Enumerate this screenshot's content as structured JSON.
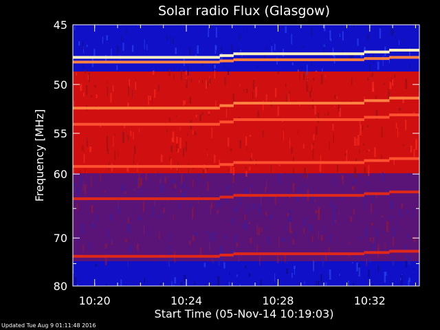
{
  "chart_data": {
    "type": "heatmap",
    "title": "Solar radio Flux (Glasgow)",
    "xlabel": "Start Time (05-Nov-14 10:19:03)",
    "ylabel": "Frequency [MHz]",
    "x_range": [
      "10:19:03",
      "10:34:10"
    ],
    "x_ticks": [
      "10:20",
      "10:24",
      "10:28",
      "10:32"
    ],
    "y_range": [
      45,
      80
    ],
    "y_ticks": [
      45,
      50,
      55,
      60,
      70,
      80
    ],
    "y_minor_ticks": [
      65,
      75
    ],
    "y_scale": "reciprocal",
    "grid": false,
    "colormap": [
      "#1010c8",
      "#d01010",
      "#ff8040",
      "#fff0c0"
    ],
    "step_times_min": [
      6.4,
      7.0,
      12.7,
      13.8
    ],
    "emission_lanes": [
      {
        "mhz_start": 47.6,
        "mhz_end": 47.0,
        "intensity": "very-high"
      },
      {
        "mhz_start": 48.0,
        "mhz_end": 47.6,
        "intensity": "high"
      },
      {
        "mhz_start": 52.3,
        "mhz_end": 51.3,
        "intensity": "high"
      },
      {
        "mhz_start": 54.0,
        "mhz_end": 53.0,
        "intensity": "medium-high"
      },
      {
        "mhz_start": 59.0,
        "mhz_end": 58.0,
        "intensity": "medium-high"
      },
      {
        "mhz_start": 63.5,
        "mhz_end": 62.5,
        "intensity": "medium"
      },
      {
        "mhz_start": 73.5,
        "mhz_end": 72.5,
        "intensity": "medium"
      }
    ]
  },
  "footer": {
    "updated": "Updated Tue Aug  9 01:11:48 2016"
  }
}
